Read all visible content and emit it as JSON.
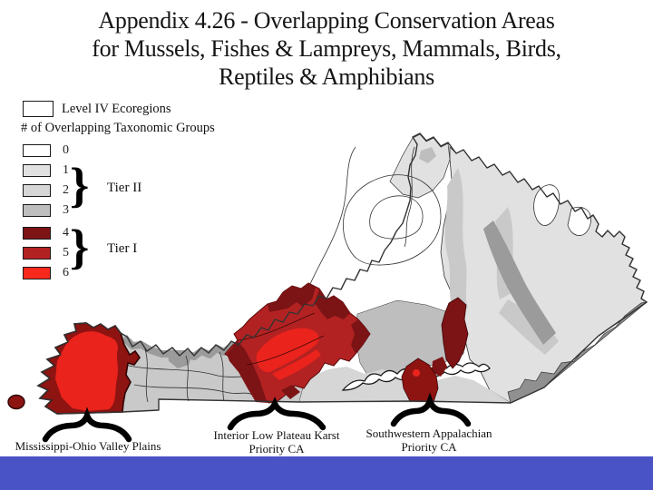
{
  "title": {
    "line1": "Appendix 4.26 - Overlapping Conservation Areas",
    "line2": "for Mussels, Fishes & Lampreys, Mammals, Birds,",
    "line3": "Reptiles & Amphibians"
  },
  "legend": {
    "level_iv_label": "Level IV Ecoregions",
    "groups_heading": "# of Overlapping Taxonomic Groups",
    "items": [
      {
        "value": "0",
        "color": "#ffffff"
      },
      {
        "value": "1",
        "color": "#e1e1e1"
      },
      {
        "value": "2",
        "color": "#d6d6d6"
      },
      {
        "value": "3",
        "color": "#bebebe"
      },
      {
        "value": "4",
        "color": "#7c1315"
      },
      {
        "value": "5",
        "color": "#b32222"
      },
      {
        "value": "6",
        "color": "#f8281d"
      }
    ],
    "tier2_label": "Tier II",
    "tier1_label": "Tier I",
    "brace_glyph": "}"
  },
  "map": {
    "annotations": [
      {
        "label": "Mississippi-Ohio Valley Plains",
        "line2": ""
      },
      {
        "label": "Interior Low Plateau Karst",
        "line2": "Priority CA"
      },
      {
        "label": "Southwestern Appalachian",
        "line2": "Priority CA"
      }
    ]
  },
  "palette": {
    "white": "#ffffff",
    "gray1": "#e1e1e1",
    "gray2": "#d6d6d6",
    "gray3": "#bebebe",
    "gray_wc": "#c9c9c9",
    "gray_rim": "#9b9b9b",
    "gray_dk": "#909090",
    "red4": "#7c1315",
    "red5": "#b32222",
    "red6": "#ea231c",
    "red_fringe": "#8e1412",
    "ink": "#333333",
    "bar": "#4a53c6"
  }
}
